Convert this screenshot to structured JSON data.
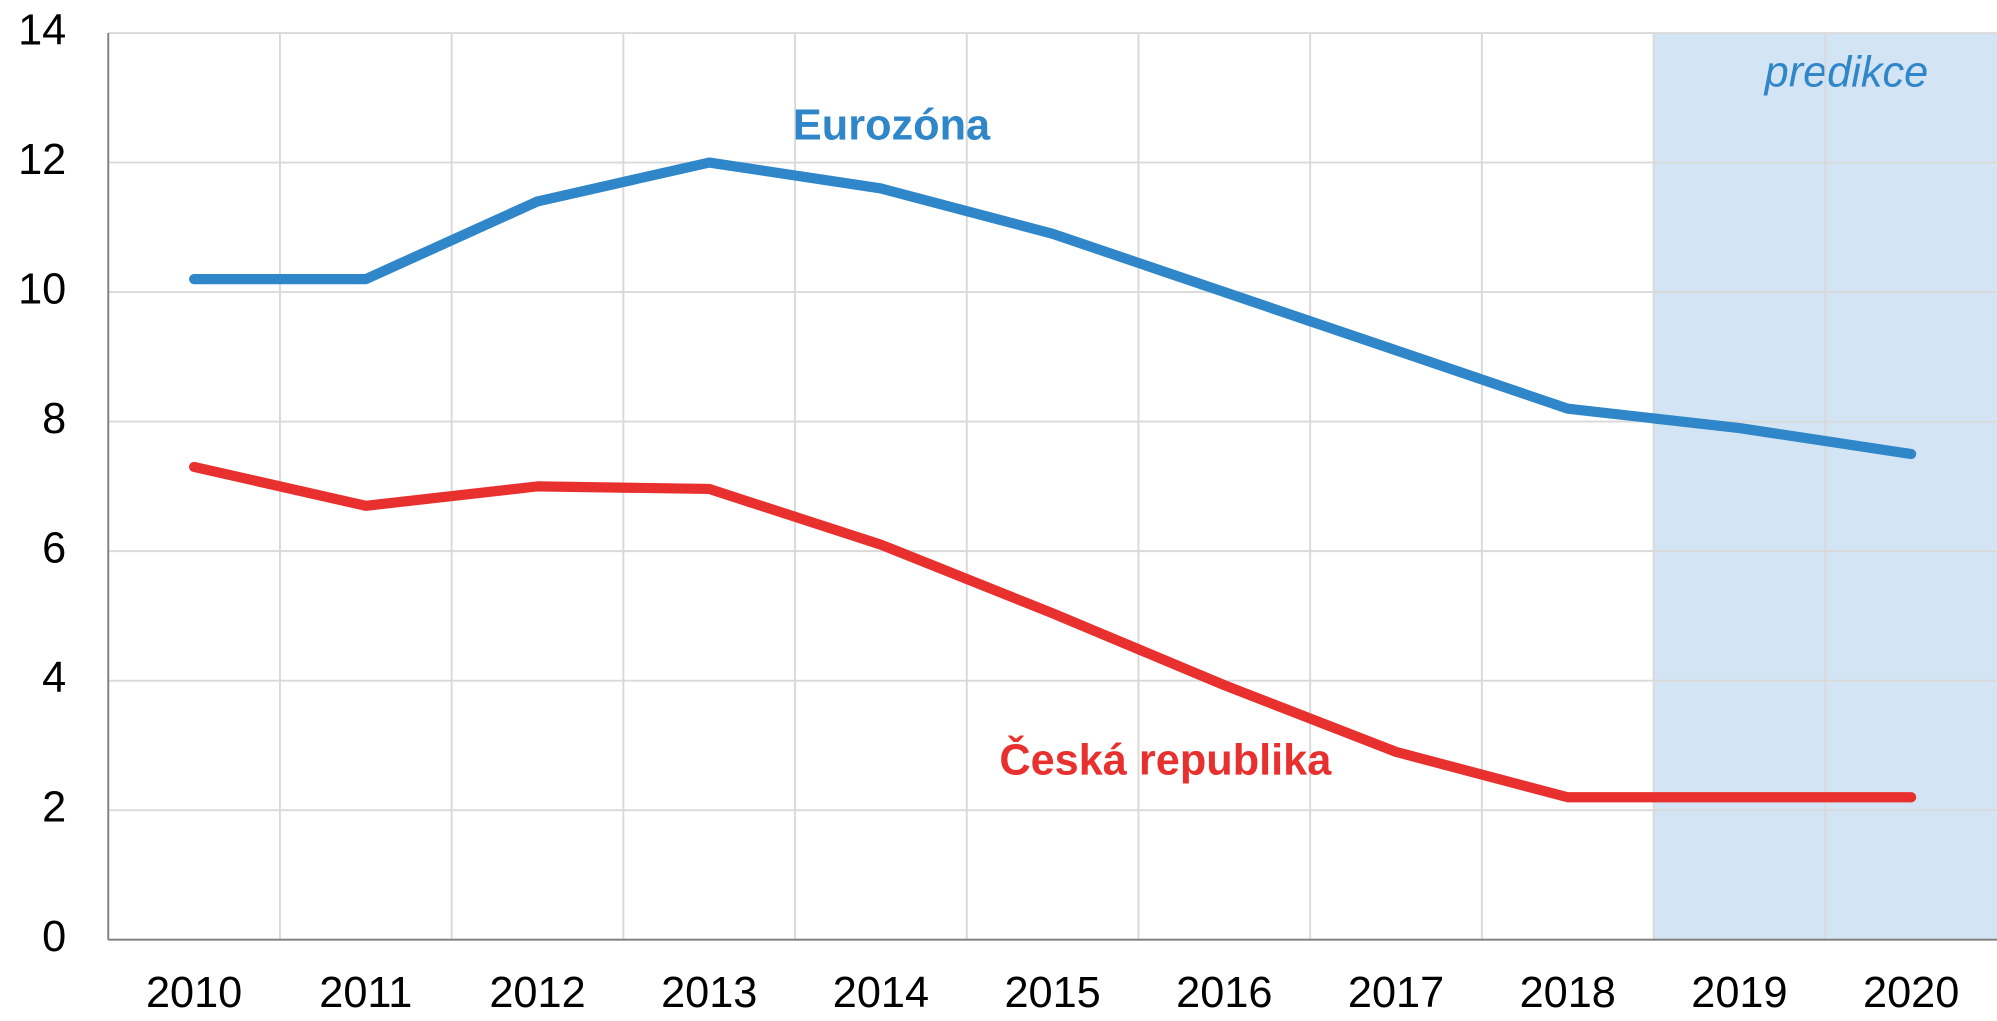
{
  "chart_data": {
    "type": "line",
    "categories": [
      "2010",
      "2011",
      "2012",
      "2013",
      "2014",
      "2015",
      "2016",
      "2017",
      "2018",
      "2019",
      "2020"
    ],
    "series": [
      {
        "name": "Eurozóna",
        "color": "#2f86c8",
        "values": [
          10.2,
          10.2,
          11.4,
          12.0,
          11.6,
          10.9,
          10.0,
          9.1,
          8.2,
          7.9,
          7.5
        ]
      },
      {
        "name": "Česká republika",
        "color": "#e8302e",
        "values": [
          7.3,
          6.7,
          7.0,
          6.96,
          6.1,
          5.04,
          3.93,
          2.9,
          2.2,
          2.2,
          2.2
        ]
      }
    ],
    "forecast": {
      "label": "predikce",
      "from": "2019",
      "color": "#d3e5f4"
    },
    "ylim": [
      0,
      14
    ],
    "yticks": [
      0,
      2,
      4,
      6,
      8,
      10,
      12,
      14
    ],
    "grid": true
  }
}
